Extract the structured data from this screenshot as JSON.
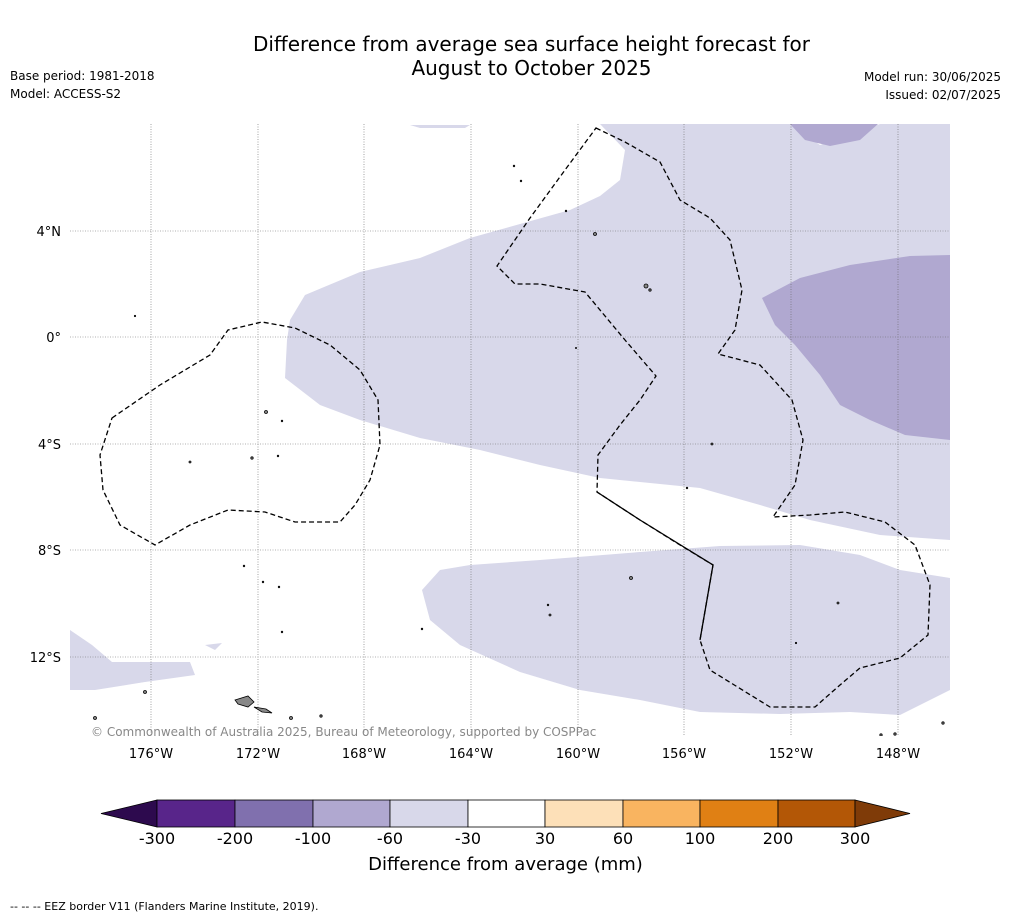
{
  "title_line1": "Difference from average sea surface height forecast for",
  "title_line2": "August to October 2025",
  "meta_left": [
    "Base period: 1981-2018",
    "Model: ACCESS-S2"
  ],
  "meta_right": [
    "Model run: 30/06/2025",
    "Issued: 02/07/2025"
  ],
  "map": {
    "lat_labels": [
      "4°N",
      "0°",
      "4°S",
      "8°S",
      "12°S"
    ],
    "lon_labels": [
      "176°W",
      "172°W",
      "168°W",
      "164°W",
      "160°W",
      "156°W",
      "152°W",
      "148°W"
    ],
    "credit": "© Commonwealth of Australia 2025, Bureau of Meteorology, supported by COSPPac",
    "colors": {
      "light_purple": "#d8d8ea",
      "mid_purple": "#b0a8d0",
      "land": "#888888"
    }
  },
  "colorbar": {
    "title": "Difference from average (mm)",
    "tick_labels": [
      "-300",
      "-200",
      "-100",
      "-60",
      "-30",
      "30",
      "60",
      "100",
      "200",
      "300"
    ],
    "colors": [
      "#2d0a4e",
      "#58258a",
      "#8070ae",
      "#b0a8d0",
      "#d8d8ea",
      "#ffffff",
      "#fde0b8",
      "#f9b460",
      "#e08014",
      "#b35706",
      "#7f3b08"
    ]
  },
  "footer": "--  --  -- EEZ border V11 (Flanders Marine Institute, 2019)."
}
